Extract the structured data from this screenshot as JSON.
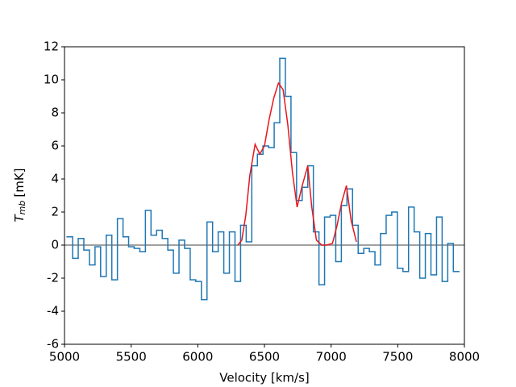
{
  "chart_data": {
    "type": "step",
    "xlabel": "Velocity [km/s]",
    "ylabel": {
      "symbol": "T",
      "subscript": "mb",
      "unit": "[mK]"
    },
    "xlim": [
      5000,
      8000
    ],
    "xticks": [
      5000,
      5500,
      6000,
      6500,
      7000,
      7500,
      8000
    ],
    "ylim": [
      -6,
      12
    ],
    "yticks": [
      -6,
      -4,
      -2,
      0,
      2,
      4,
      6,
      8,
      10,
      12
    ],
    "reference_line": {
      "y": 0,
      "color": "#808080"
    },
    "series": [
      {
        "style": "step",
        "color": "#1f77b4",
        "x": [
          5040,
          5082,
          5124,
          5166,
          5208,
          5250,
          5292,
          5334,
          5376,
          5418,
          5460,
          5502,
          5544,
          5586,
          5628,
          5670,
          5712,
          5754,
          5796,
          5838,
          5880,
          5922,
          5964,
          6006,
          6048,
          6090,
          6132,
          6174,
          6216,
          6258,
          6300,
          6342,
          6384,
          6426,
          6468,
          6510,
          6552,
          6594,
          6636,
          6678,
          6720,
          6762,
          6804,
          6846,
          6888,
          6930,
          6972,
          7014,
          7056,
          7098,
          7140,
          7182,
          7224,
          7266,
          7308,
          7350,
          7392,
          7434,
          7476,
          7518,
          7560,
          7602,
          7644,
          7686,
          7728,
          7770,
          7812,
          7854,
          7896,
          7938
        ],
        "values": [
          0.5,
          -0.8,
          0.4,
          -0.3,
          -1.2,
          -0.1,
          -1.9,
          0.6,
          -2.1,
          1.6,
          0.5,
          -0.1,
          -0.2,
          -0.4,
          2.1,
          0.6,
          0.9,
          0.4,
          -0.3,
          -1.7,
          0.3,
          -0.2,
          -2.1,
          -2.2,
          -3.3,
          1.4,
          -0.4,
          0.8,
          -1.7,
          0.8,
          -2.2,
          1.2,
          0.2,
          4.8,
          5.5,
          6.0,
          5.9,
          7.4,
          11.3,
          9.0,
          5.6,
          2.7,
          3.5,
          4.8,
          0.8,
          -2.4,
          1.7,
          1.8,
          -1.0,
          2.4,
          3.4,
          1.2,
          -0.5,
          -0.2,
          -0.4,
          -1.2,
          0.7,
          1.8,
          2.0,
          -1.4,
          -1.6,
          2.3,
          0.8,
          -2.0,
          0.7,
          -1.8,
          1.7,
          -2.2,
          0.1,
          -1.6
        ]
      },
      {
        "style": "line",
        "color": "#e8161a",
        "x": [
          6300,
          6330,
          6360,
          6390,
          6430,
          6465,
          6500,
          6535,
          6570,
          6605,
          6640,
          6675,
          6710,
          6745,
          6780,
          6825,
          6855,
          6890,
          6930,
          6965,
          7010,
          7045,
          7080,
          7115,
          7150,
          7190
        ],
        "values": [
          0,
          0.3,
          1.8,
          4.2,
          6.1,
          5.5,
          6.0,
          7.6,
          8.9,
          9.8,
          9.4,
          7.3,
          4.4,
          2.3,
          3.5,
          4.8,
          2.3,
          0.3,
          0,
          0,
          0.1,
          1.2,
          2.6,
          3.6,
          1.5,
          0.2
        ]
      }
    ]
  }
}
